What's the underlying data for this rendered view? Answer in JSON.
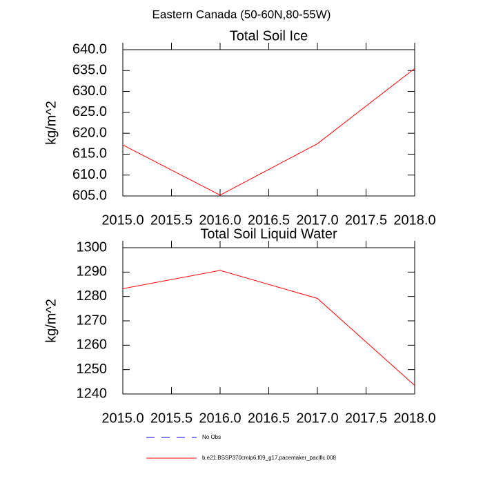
{
  "title": "Eastern Canada (50-60N,80-55W)",
  "chart_data": [
    {
      "type": "line",
      "title": "Total Soil Ice",
      "ylabel": "kg/m^2",
      "x": [
        2015,
        2016,
        2017,
        2018
      ],
      "series": [
        {
          "color": "#ff0000",
          "values": [
            617.2,
            605.2,
            617.5,
            635.5
          ]
        }
      ],
      "xlim": [
        2015,
        2018
      ],
      "xticks": [
        {
          "value": 2015,
          "label": "2015.0"
        },
        {
          "value": 2015.5,
          "label": "2015.5"
        },
        {
          "value": 2016,
          "label": "2016.0"
        },
        {
          "value": 2016.5,
          "label": "2016.5"
        },
        {
          "value": 2017,
          "label": "2017.0"
        },
        {
          "value": 2017.5,
          "label": "2017.5"
        },
        {
          "value": 2018,
          "label": "2018.0"
        }
      ],
      "ylim": [
        605,
        640
      ],
      "yticks": [
        {
          "value": 605,
          "label": "605.0"
        },
        {
          "value": 610,
          "label": "610.0"
        },
        {
          "value": 615,
          "label": "615.0"
        },
        {
          "value": 620,
          "label": "620.0"
        },
        {
          "value": 625,
          "label": "625.0"
        },
        {
          "value": 630,
          "label": "630.0"
        },
        {
          "value": 635,
          "label": "635.0"
        },
        {
          "value": 640,
          "label": "640.0"
        }
      ]
    },
    {
      "type": "line",
      "title": "Total Soil Liquid Water",
      "ylabel": "kg/m^2",
      "x": [
        2015,
        2016,
        2017,
        2018
      ],
      "series": [
        {
          "color": "#ff0000",
          "values": [
            1283.2,
            1290.7,
            1279.2,
            1243.5
          ]
        }
      ],
      "xlim": [
        2015,
        2018
      ],
      "xticks": [
        {
          "value": 2015,
          "label": "2015.0"
        },
        {
          "value": 2015.5,
          "label": "2015.5"
        },
        {
          "value": 2016,
          "label": "2016.0"
        },
        {
          "value": 2016.5,
          "label": "2016.5"
        },
        {
          "value": 2017,
          "label": "2017.0"
        },
        {
          "value": 2017.5,
          "label": "2017.5"
        },
        {
          "value": 2018,
          "label": "2018.0"
        }
      ],
      "ylim": [
        1240,
        1300
      ],
      "yticks": [
        1240,
        1250,
        1260,
        1270,
        1280,
        1290,
        1300
      ]
    }
  ],
  "legend": [
    {
      "name": "No Obs",
      "color": "#0000ff",
      "dash": true
    },
    {
      "name": "b.e21.BSSP370cmip6.f09_g17.pacemaker_pacific.008",
      "color": "#ff0000"
    }
  ]
}
